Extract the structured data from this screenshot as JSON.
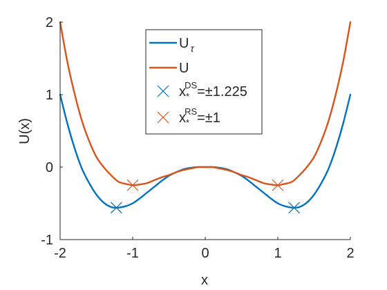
{
  "chart_data": {
    "type": "line",
    "xlabel": "x",
    "ylabel": "U(x)",
    "xlim": [
      -2,
      2
    ],
    "ylim": [
      -1,
      2
    ],
    "xticks": [
      {
        "value": -2,
        "label": "-2"
      },
      {
        "value": -1,
        "label": "-1"
      },
      {
        "value": 0,
        "label": "0"
      },
      {
        "value": 1,
        "label": "1"
      },
      {
        "value": 2,
        "label": "2"
      }
    ],
    "yticks": [
      {
        "value": -1,
        "label": "-1"
      },
      {
        "value": 0,
        "label": "0"
      },
      {
        "value": 1,
        "label": "1"
      },
      {
        "value": 2,
        "label": "2"
      }
    ],
    "grid": false,
    "legend_placement": "top-center",
    "series": [
      {
        "name_base": "U",
        "name_sub": "τ",
        "color": "#0072BD",
        "kind": "line",
        "x": [
          -2.0,
          -1.9,
          -1.8,
          -1.7,
          -1.6,
          -1.5,
          -1.4,
          -1.3,
          -1.225,
          -1.2,
          -1.1,
          -1.0,
          -0.9,
          -0.8,
          -0.7,
          -0.6,
          -0.5,
          -0.4,
          -0.3,
          -0.2,
          -0.1,
          0.0,
          0.1,
          0.2,
          0.3,
          0.4,
          0.5,
          0.6,
          0.7,
          0.8,
          0.9,
          1.0,
          1.1,
          1.2,
          1.225,
          1.3,
          1.4,
          1.5,
          1.6,
          1.7,
          1.8,
          1.9,
          2.0
        ],
        "y": [
          1.0,
          0.6,
          0.26,
          -0.02,
          -0.22,
          -0.38,
          -0.49,
          -0.55,
          -0.56,
          -0.56,
          -0.54,
          -0.5,
          -0.43,
          -0.35,
          -0.27,
          -0.19,
          -0.12,
          -0.07,
          -0.03,
          -0.01,
          0.0,
          0.0,
          0.0,
          -0.01,
          -0.03,
          -0.07,
          -0.12,
          -0.19,
          -0.27,
          -0.35,
          -0.43,
          -0.5,
          -0.54,
          -0.56,
          -0.56,
          -0.55,
          -0.49,
          -0.38,
          -0.22,
          -0.02,
          0.26,
          0.6,
          1.0
        ]
      },
      {
        "name_base": "U",
        "color": "#D95319",
        "kind": "line",
        "x": [
          -2.0,
          -1.9,
          -1.8,
          -1.7,
          -1.6,
          -1.5,
          -1.4,
          -1.3,
          -1.2,
          -1.1,
          -1.0,
          -0.9,
          -0.8,
          -0.7,
          -0.6,
          -0.5,
          -0.4,
          -0.3,
          -0.2,
          -0.1,
          0.0,
          0.1,
          0.2,
          0.3,
          0.4,
          0.5,
          0.6,
          0.7,
          0.8,
          0.9,
          1.0,
          1.1,
          1.2,
          1.3,
          1.4,
          1.5,
          1.6,
          1.7,
          1.8,
          1.9,
          2.0
        ],
        "y": [
          2.0,
          1.45,
          1.01,
          0.64,
          0.36,
          0.14,
          0.0,
          -0.11,
          -0.2,
          -0.23,
          -0.25,
          -0.24,
          -0.22,
          -0.18,
          -0.14,
          -0.11,
          -0.07,
          -0.04,
          -0.02,
          0.0,
          0.0,
          0.0,
          -0.02,
          -0.04,
          -0.07,
          -0.11,
          -0.14,
          -0.18,
          -0.22,
          -0.24,
          -0.25,
          -0.23,
          -0.2,
          -0.11,
          0.0,
          0.14,
          0.36,
          0.64,
          1.01,
          1.45,
          2.0
        ]
      },
      {
        "name_base": "x",
        "name_sub": "*",
        "name_sup": "DS",
        "name_rest": "=±1.225",
        "color": "#0072BD",
        "kind": "marker",
        "x": [
          -1.225,
          1.225
        ],
        "y": [
          -0.56,
          -0.56
        ]
      },
      {
        "name_base": "x",
        "name_sub": "*",
        "name_sup": "RS",
        "name_rest": "=±1",
        "color": "#D95319",
        "kind": "marker",
        "x": [
          -1.0,
          1.0
        ],
        "y": [
          -0.25,
          -0.25
        ]
      }
    ]
  }
}
